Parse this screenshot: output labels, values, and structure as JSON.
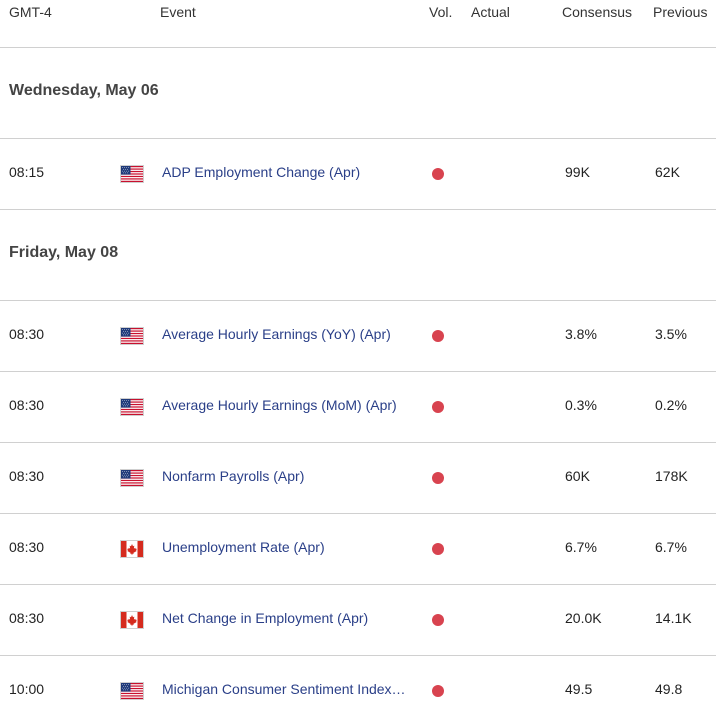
{
  "header": {
    "timezone": "GMT-4",
    "event": "Event",
    "vol": "Vol.",
    "actual": "Actual",
    "consensus": "Consensus",
    "previous": "Previous"
  },
  "days": [
    {
      "date": "Wednesday, May 06",
      "events": [
        {
          "time": "08:15",
          "country": "US",
          "flag_icon": "us-flag-icon",
          "name": "ADP Employment Change (Apr)",
          "volatility": "high",
          "actual": "",
          "consensus": "99K",
          "previous": "62K"
        }
      ]
    },
    {
      "date": "Friday, May 08",
      "events": [
        {
          "time": "08:30",
          "country": "US",
          "flag_icon": "us-flag-icon",
          "name": "Average Hourly Earnings (YoY) (Apr)",
          "volatility": "high",
          "actual": "",
          "consensus": "3.8%",
          "previous": "3.5%"
        },
        {
          "time": "08:30",
          "country": "US",
          "flag_icon": "us-flag-icon",
          "name": "Average Hourly Earnings (MoM) (Apr)",
          "volatility": "high",
          "actual": "",
          "consensus": "0.3%",
          "previous": "0.2%"
        },
        {
          "time": "08:30",
          "country": "US",
          "flag_icon": "us-flag-icon",
          "name": "Nonfarm Payrolls (Apr)",
          "volatility": "high",
          "actual": "",
          "consensus": "60K",
          "previous": "178K"
        },
        {
          "time": "08:30",
          "country": "CA",
          "flag_icon": "canada-flag-icon",
          "name": "Unemployment Rate (Apr)",
          "volatility": "high",
          "actual": "",
          "consensus": "6.7%",
          "previous": "6.7%"
        },
        {
          "time": "08:30",
          "country": "CA",
          "flag_icon": "canada-flag-icon",
          "name": "Net Change in Employment (Apr)",
          "volatility": "high",
          "actual": "",
          "consensus": "20.0K",
          "previous": "14.1K"
        },
        {
          "time": "10:00",
          "country": "US",
          "flag_icon": "us-flag-icon",
          "name": "Michigan Consumer Sentiment Index…",
          "volatility": "high",
          "actual": "",
          "consensus": "49.5",
          "previous": "49.8"
        }
      ]
    }
  ],
  "colors": {
    "high_volatility": "#d8434f",
    "event_link": "#2a3f88",
    "divider": "#d0d0d0"
  }
}
